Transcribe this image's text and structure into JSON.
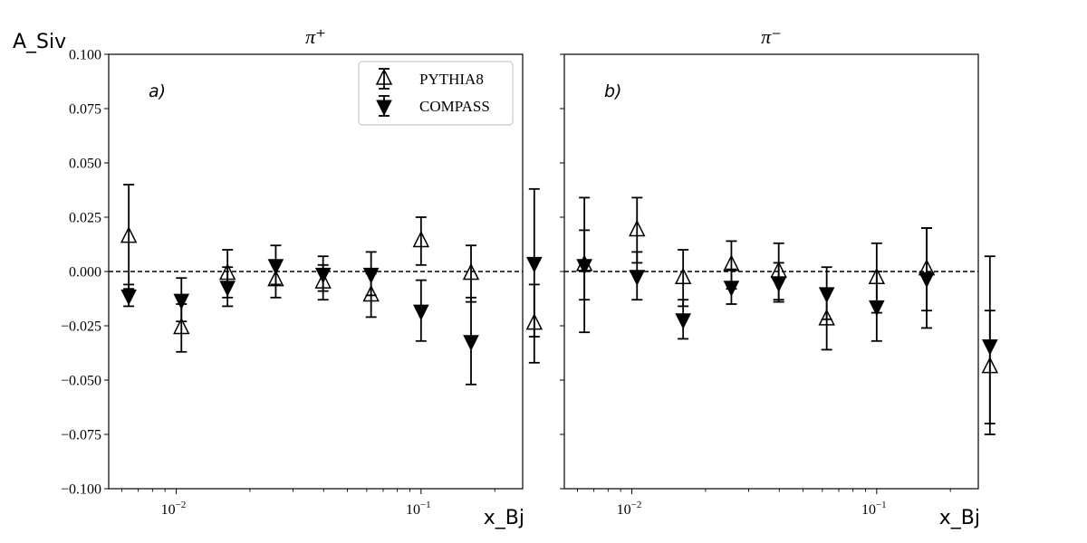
{
  "chart_data": [
    {
      "type": "scatter",
      "title": "π⁺",
      "ylabel": "A_Siv",
      "xlabel": "x_Bj",
      "panel_label": "a)",
      "xscale": "log",
      "xlim": [
        0.0053,
        0.26
      ],
      "ylim": [
        -0.1,
        0.1
      ],
      "ytick_labels": [
        "−0.100",
        "−0.075",
        "−0.050",
        "−0.025",
        "0.000",
        "0.025",
        "0.050",
        "0.075",
        "0.100"
      ],
      "ytick_values": [
        -0.1,
        -0.075,
        -0.05,
        -0.025,
        0,
        0.025,
        0.05,
        0.075,
        0.1
      ],
      "xtick_values": [
        0.01,
        0.1
      ],
      "xtick_labels": [
        {
          "base": "10",
          "exp": "−2"
        },
        {
          "base": "10",
          "exp": "−1"
        }
      ],
      "reference_line_y": 0,
      "legend": {
        "placement": "top-right",
        "entries": [
          "PYTHIA8",
          "COMPASS"
        ]
      },
      "series": [
        {
          "name": "PYTHIA8",
          "marker": "open-triangle-up",
          "x": [
            0.0064,
            0.0105,
            0.0162,
            0.0255,
            0.0398,
            0.0625,
            0.1,
            0.16,
            0.29
          ],
          "y": [
            0.016,
            -0.026,
            -0.001,
            -0.004,
            -0.005,
            -0.011,
            0.014,
            -0.001,
            -0.024
          ],
          "err": [
            0.024,
            0.011,
            0.011,
            0.008,
            0.008,
            0.01,
            0.011,
            0.013,
            0.018
          ]
        },
        {
          "name": "COMPASS",
          "marker": "filled-triangle-down",
          "x": [
            0.0064,
            0.0105,
            0.0162,
            0.0255,
            0.0398,
            0.0625,
            0.1,
            0.16,
            0.29
          ],
          "y": [
            -0.011,
            -0.013,
            -0.007,
            0.003,
            -0.001,
            -0.001,
            -0.018,
            -0.032,
            0.004
          ],
          "err": [
            0.005,
            0.01,
            0.009,
            0.009,
            0.008,
            0.01,
            0.014,
            0.02,
            0.034
          ]
        }
      ]
    },
    {
      "type": "scatter",
      "title": "π⁻",
      "xlabel": "x_Bj",
      "panel_label": "b)",
      "xscale": "log",
      "xlim": [
        0.0053,
        0.26
      ],
      "ylim": [
        -0.1,
        0.1
      ],
      "ytick_values": [
        -0.1,
        -0.075,
        -0.05,
        -0.025,
        0,
        0.025,
        0.05,
        0.075,
        0.1
      ],
      "xtick_values": [
        0.01,
        0.1
      ],
      "xtick_labels": [
        {
          "base": "10",
          "exp": "−2"
        },
        {
          "base": "10",
          "exp": "−1"
        }
      ],
      "reference_line_y": 0,
      "series": [
        {
          "name": "PYTHIA8",
          "marker": "open-triangle-up",
          "x": [
            0.0064,
            0.0105,
            0.0162,
            0.0255,
            0.0398,
            0.0625,
            0.1,
            0.16,
            0.29
          ],
          "y": [
            0.003,
            0.019,
            -0.003,
            0.003,
            0.0,
            -0.022,
            -0.003,
            0.001,
            -0.044
          ],
          "err": [
            0.016,
            0.015,
            0.013,
            0.011,
            0.013,
            0.014,
            0.016,
            0.019,
            0.026
          ]
        },
        {
          "name": "COMPASS",
          "marker": "filled-triangle-down",
          "x": [
            0.0064,
            0.0105,
            0.0162,
            0.0255,
            0.0398,
            0.0625,
            0.1,
            0.16,
            0.29
          ],
          "y": [
            0.003,
            -0.002,
            -0.022,
            -0.007,
            -0.005,
            -0.01,
            -0.016,
            -0.003,
            -0.034
          ],
          "err": [
            0.031,
            0.011,
            0.009,
            0.008,
            0.009,
            0.012,
            0.016,
            0.023,
            0.041
          ]
        }
      ]
    }
  ]
}
